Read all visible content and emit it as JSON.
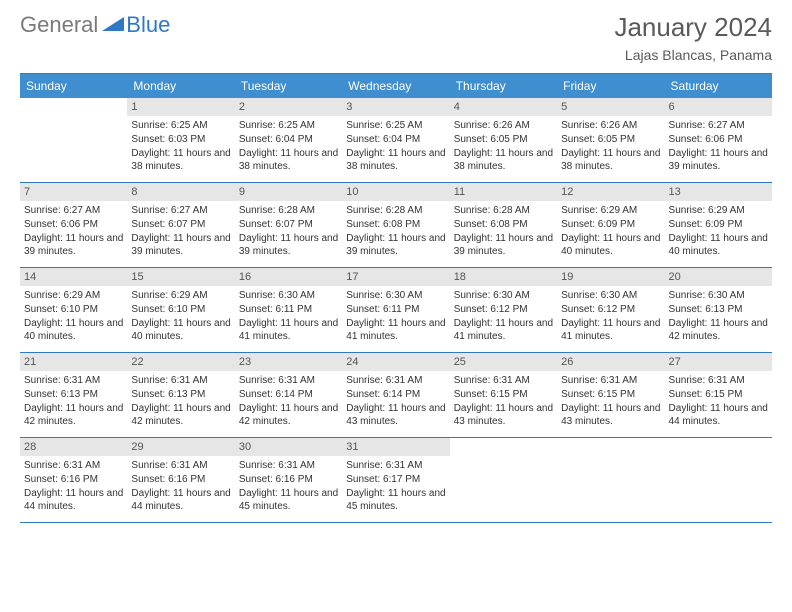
{
  "brand": {
    "part1": "General",
    "part2": "Blue"
  },
  "title": "January 2024",
  "location": "Lajas Blancas, Panama",
  "colors": {
    "header_bg": "#3f8ed0",
    "rule": "#2f78c4",
    "daynum_bg": "#e6e6e6",
    "text": "#333333",
    "brand_gray": "#7a7a7a",
    "brand_blue": "#2f78c4"
  },
  "daysOfWeek": [
    "Sunday",
    "Monday",
    "Tuesday",
    "Wednesday",
    "Thursday",
    "Friday",
    "Saturday"
  ],
  "startOffset": 1,
  "cells": [
    {
      "n": 1,
      "sr": "6:25 AM",
      "ss": "6:03 PM",
      "dl": "11 hours and 38 minutes."
    },
    {
      "n": 2,
      "sr": "6:25 AM",
      "ss": "6:04 PM",
      "dl": "11 hours and 38 minutes."
    },
    {
      "n": 3,
      "sr": "6:25 AM",
      "ss": "6:04 PM",
      "dl": "11 hours and 38 minutes."
    },
    {
      "n": 4,
      "sr": "6:26 AM",
      "ss": "6:05 PM",
      "dl": "11 hours and 38 minutes."
    },
    {
      "n": 5,
      "sr": "6:26 AM",
      "ss": "6:05 PM",
      "dl": "11 hours and 38 minutes."
    },
    {
      "n": 6,
      "sr": "6:27 AM",
      "ss": "6:06 PM",
      "dl": "11 hours and 39 minutes."
    },
    {
      "n": 7,
      "sr": "6:27 AM",
      "ss": "6:06 PM",
      "dl": "11 hours and 39 minutes."
    },
    {
      "n": 8,
      "sr": "6:27 AM",
      "ss": "6:07 PM",
      "dl": "11 hours and 39 minutes."
    },
    {
      "n": 9,
      "sr": "6:28 AM",
      "ss": "6:07 PM",
      "dl": "11 hours and 39 minutes."
    },
    {
      "n": 10,
      "sr": "6:28 AM",
      "ss": "6:08 PM",
      "dl": "11 hours and 39 minutes."
    },
    {
      "n": 11,
      "sr": "6:28 AM",
      "ss": "6:08 PM",
      "dl": "11 hours and 39 minutes."
    },
    {
      "n": 12,
      "sr": "6:29 AM",
      "ss": "6:09 PM",
      "dl": "11 hours and 40 minutes."
    },
    {
      "n": 13,
      "sr": "6:29 AM",
      "ss": "6:09 PM",
      "dl": "11 hours and 40 minutes."
    },
    {
      "n": 14,
      "sr": "6:29 AM",
      "ss": "6:10 PM",
      "dl": "11 hours and 40 minutes."
    },
    {
      "n": 15,
      "sr": "6:29 AM",
      "ss": "6:10 PM",
      "dl": "11 hours and 40 minutes."
    },
    {
      "n": 16,
      "sr": "6:30 AM",
      "ss": "6:11 PM",
      "dl": "11 hours and 41 minutes."
    },
    {
      "n": 17,
      "sr": "6:30 AM",
      "ss": "6:11 PM",
      "dl": "11 hours and 41 minutes."
    },
    {
      "n": 18,
      "sr": "6:30 AM",
      "ss": "6:12 PM",
      "dl": "11 hours and 41 minutes."
    },
    {
      "n": 19,
      "sr": "6:30 AM",
      "ss": "6:12 PM",
      "dl": "11 hours and 41 minutes."
    },
    {
      "n": 20,
      "sr": "6:30 AM",
      "ss": "6:13 PM",
      "dl": "11 hours and 42 minutes."
    },
    {
      "n": 21,
      "sr": "6:31 AM",
      "ss": "6:13 PM",
      "dl": "11 hours and 42 minutes."
    },
    {
      "n": 22,
      "sr": "6:31 AM",
      "ss": "6:13 PM",
      "dl": "11 hours and 42 minutes."
    },
    {
      "n": 23,
      "sr": "6:31 AM",
      "ss": "6:14 PM",
      "dl": "11 hours and 42 minutes."
    },
    {
      "n": 24,
      "sr": "6:31 AM",
      "ss": "6:14 PM",
      "dl": "11 hours and 43 minutes."
    },
    {
      "n": 25,
      "sr": "6:31 AM",
      "ss": "6:15 PM",
      "dl": "11 hours and 43 minutes."
    },
    {
      "n": 26,
      "sr": "6:31 AM",
      "ss": "6:15 PM",
      "dl": "11 hours and 43 minutes."
    },
    {
      "n": 27,
      "sr": "6:31 AM",
      "ss": "6:15 PM",
      "dl": "11 hours and 44 minutes."
    },
    {
      "n": 28,
      "sr": "6:31 AM",
      "ss": "6:16 PM",
      "dl": "11 hours and 44 minutes."
    },
    {
      "n": 29,
      "sr": "6:31 AM",
      "ss": "6:16 PM",
      "dl": "11 hours and 44 minutes."
    },
    {
      "n": 30,
      "sr": "6:31 AM",
      "ss": "6:16 PM",
      "dl": "11 hours and 45 minutes."
    },
    {
      "n": 31,
      "sr": "6:31 AM",
      "ss": "6:17 PM",
      "dl": "11 hours and 45 minutes."
    }
  ],
  "labels": {
    "sunrise": "Sunrise:",
    "sunset": "Sunset:",
    "daylight": "Daylight:"
  }
}
